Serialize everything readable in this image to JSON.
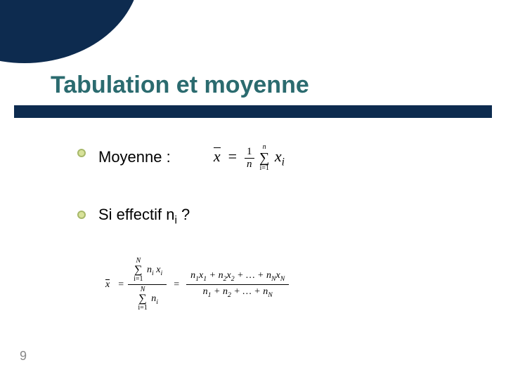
{
  "slide": {
    "title": "Tabulation et moyenne",
    "number": "9",
    "title_color": "#2b6b6f",
    "accent_color": "#0d2b4f",
    "bullet_fill": "#d8e29a",
    "bullet_border": "#a7b86a",
    "background": "#ffffff"
  },
  "bullets": [
    {
      "text": "Moyenne :"
    },
    {
      "text": "Si effectif n",
      "sub": "i",
      "tail": " ?"
    }
  ],
  "formula1": {
    "lhs_symbol": "x̄",
    "sum_upper": "n",
    "sum_lower": "i=1",
    "term": "xᵢ",
    "one_over": "1",
    "denom": "n"
  },
  "formula2": {
    "lhs_symbol": "x̄",
    "sum_upper": "N",
    "sum_lower_num": "i=1",
    "sum_lower_den": "i=1",
    "num_term": "nᵢ xᵢ",
    "den_term": "nᵢ",
    "expanded_num": "n₁x₁ + n₂x₂ + … + n_N x_N",
    "expanded_den": "n₁ + n₂ + … + n_N"
  }
}
